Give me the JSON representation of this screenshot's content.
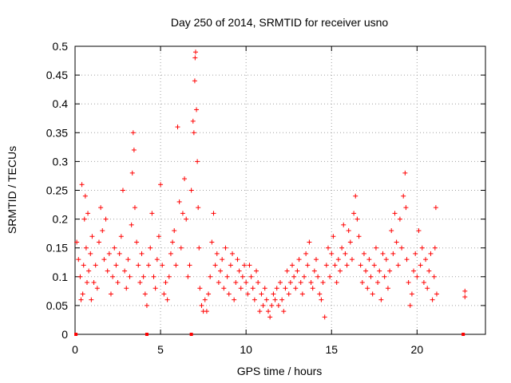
{
  "chart_data": {
    "type": "scatter",
    "title": "Day 250 of 2014, SRMTID for receiver usno",
    "xlabel": "GPS time / hours",
    "ylabel": "SRMTID / TECUs",
    "xlim": [
      0,
      24
    ],
    "ylim": [
      0,
      0.5
    ],
    "xticks": [
      0,
      5,
      10,
      15,
      20
    ],
    "yticks": [
      0,
      0.05,
      0.1,
      0.15,
      0.2,
      0.25,
      0.3,
      0.35,
      0.4,
      0.45,
      0.5
    ],
    "xtick_labels": [
      "0",
      "5",
      "10",
      "15",
      "20"
    ],
    "ytick_labels": [
      "0",
      "0.05",
      "0.1",
      "0.15",
      "0.2",
      "0.25",
      "0.3",
      "0.35",
      "0.4",
      "0.45",
      "0.5"
    ],
    "grid": true,
    "marker": "+",
    "color": "#ff0000",
    "zero_points": [
      [
        0.05,
        0.0
      ],
      [
        4.2,
        0.0
      ],
      [
        6.8,
        0.0
      ],
      [
        22.7,
        0.0
      ]
    ],
    "series": [
      {
        "name": "SRMTID",
        "points": [
          [
            0.1,
            0.16
          ],
          [
            0.2,
            0.13
          ],
          [
            0.3,
            0.1
          ],
          [
            0.35,
            0.06
          ],
          [
            0.4,
            0.26
          ],
          [
            0.45,
            0.07
          ],
          [
            0.5,
            0.12
          ],
          [
            0.55,
            0.2
          ],
          [
            0.6,
            0.24
          ],
          [
            0.65,
            0.15
          ],
          [
            0.7,
            0.09
          ],
          [
            0.75,
            0.21
          ],
          [
            0.8,
            0.11
          ],
          [
            0.9,
            0.14
          ],
          [
            0.95,
            0.06
          ],
          [
            1.0,
            0.17
          ],
          [
            1.1,
            0.09
          ],
          [
            1.2,
            0.12
          ],
          [
            1.3,
            0.08
          ],
          [
            1.4,
            0.16
          ],
          [
            1.5,
            0.22
          ],
          [
            1.6,
            0.18
          ],
          [
            1.7,
            0.13
          ],
          [
            1.8,
            0.2
          ],
          [
            1.9,
            0.11
          ],
          [
            2.0,
            0.14
          ],
          [
            2.1,
            0.07
          ],
          [
            2.2,
            0.1
          ],
          [
            2.3,
            0.15
          ],
          [
            2.4,
            0.12
          ],
          [
            2.5,
            0.09
          ],
          [
            2.6,
            0.14
          ],
          [
            2.7,
            0.17
          ],
          [
            2.8,
            0.25
          ],
          [
            2.9,
            0.11
          ],
          [
            3.0,
            0.08
          ],
          [
            3.1,
            0.13
          ],
          [
            3.2,
            0.1
          ],
          [
            3.3,
            0.19
          ],
          [
            3.35,
            0.28
          ],
          [
            3.4,
            0.35
          ],
          [
            3.45,
            0.32
          ],
          [
            3.5,
            0.22
          ],
          [
            3.6,
            0.16
          ],
          [
            3.7,
            0.12
          ],
          [
            3.8,
            0.09
          ],
          [
            3.9,
            0.14
          ],
          [
            4.0,
            0.1
          ],
          [
            4.1,
            0.07
          ],
          [
            4.2,
            0.05
          ],
          [
            4.3,
            0.12
          ],
          [
            4.4,
            0.15
          ],
          [
            4.5,
            0.21
          ],
          [
            4.6,
            0.1
          ],
          [
            4.7,
            0.08
          ],
          [
            4.8,
            0.13
          ],
          [
            4.9,
            0.17
          ],
          [
            5.0,
            0.26
          ],
          [
            5.1,
            0.12
          ],
          [
            5.2,
            0.07
          ],
          [
            5.3,
            0.09
          ],
          [
            5.4,
            0.06
          ],
          [
            5.5,
            0.1
          ],
          [
            5.6,
            0.14
          ],
          [
            5.7,
            0.16
          ],
          [
            5.8,
            0.18
          ],
          [
            5.9,
            0.12
          ],
          [
            6.0,
            0.36
          ],
          [
            6.1,
            0.23
          ],
          [
            6.2,
            0.15
          ],
          [
            6.3,
            0.21
          ],
          [
            6.4,
            0.27
          ],
          [
            6.5,
            0.2
          ],
          [
            6.6,
            0.1
          ],
          [
            6.7,
            0.12
          ],
          [
            6.8,
            0.25
          ],
          [
            6.9,
            0.37
          ],
          [
            6.95,
            0.35
          ],
          [
            7.0,
            0.44
          ],
          [
            7.02,
            0.48
          ],
          [
            7.05,
            0.49
          ],
          [
            7.1,
            0.39
          ],
          [
            7.15,
            0.3
          ],
          [
            7.2,
            0.22
          ],
          [
            7.25,
            0.15
          ],
          [
            7.3,
            0.08
          ],
          [
            7.4,
            0.05
          ],
          [
            7.5,
            0.04
          ],
          [
            7.6,
            0.06
          ],
          [
            7.7,
            0.04
          ],
          [
            7.8,
            0.07
          ],
          [
            7.9,
            0.1
          ],
          [
            8.0,
            0.16
          ],
          [
            8.1,
            0.21
          ],
          [
            8.2,
            0.12
          ],
          [
            8.3,
            0.14
          ],
          [
            8.4,
            0.09
          ],
          [
            8.5,
            0.11
          ],
          [
            8.6,
            0.13
          ],
          [
            8.7,
            0.08
          ],
          [
            8.8,
            0.15
          ],
          [
            8.9,
            0.1
          ],
          [
            9.0,
            0.07
          ],
          [
            9.1,
            0.12
          ],
          [
            9.2,
            0.14
          ],
          [
            9.3,
            0.06
          ],
          [
            9.4,
            0.09
          ],
          [
            9.5,
            0.13
          ],
          [
            9.6,
            0.11
          ],
          [
            9.7,
            0.08
          ],
          [
            9.8,
            0.1
          ],
          [
            9.9,
            0.12
          ],
          [
            10.0,
            0.09
          ],
          [
            10.1,
            0.07
          ],
          [
            10.2,
            0.12
          ],
          [
            10.3,
            0.1
          ],
          [
            10.4,
            0.08
          ],
          [
            10.5,
            0.06
          ],
          [
            10.6,
            0.11
          ],
          [
            10.7,
            0.09
          ],
          [
            10.8,
            0.04
          ],
          [
            10.9,
            0.07
          ],
          [
            11.0,
            0.05
          ],
          [
            11.1,
            0.08
          ],
          [
            11.2,
            0.06
          ],
          [
            11.3,
            0.04
          ],
          [
            11.4,
            0.03
          ],
          [
            11.5,
            0.05
          ],
          [
            11.6,
            0.07
          ],
          [
            11.7,
            0.06
          ],
          [
            11.8,
            0.08
          ],
          [
            11.9,
            0.05
          ],
          [
            12.0,
            0.09
          ],
          [
            12.1,
            0.06
          ],
          [
            12.2,
            0.04
          ],
          [
            12.3,
            0.08
          ],
          [
            12.4,
            0.11
          ],
          [
            12.5,
            0.07
          ],
          [
            12.6,
            0.09
          ],
          [
            12.7,
            0.12
          ],
          [
            12.8,
            0.1
          ],
          [
            12.9,
            0.08
          ],
          [
            13.0,
            0.11
          ],
          [
            13.1,
            0.13
          ],
          [
            13.2,
            0.09
          ],
          [
            13.3,
            0.07
          ],
          [
            13.4,
            0.1
          ],
          [
            13.5,
            0.14
          ],
          [
            13.6,
            0.12
          ],
          [
            13.7,
            0.16
          ],
          [
            13.8,
            0.09
          ],
          [
            13.9,
            0.08
          ],
          [
            14.0,
            0.11
          ],
          [
            14.1,
            0.13
          ],
          [
            14.2,
            0.1
          ],
          [
            14.3,
            0.07
          ],
          [
            14.4,
            0.06
          ],
          [
            14.5,
            0.09
          ],
          [
            14.6,
            0.03
          ],
          [
            14.7,
            0.12
          ],
          [
            14.8,
            0.15
          ],
          [
            14.9,
            0.1
          ],
          [
            15.0,
            0.14
          ],
          [
            15.1,
            0.17
          ],
          [
            15.2,
            0.12
          ],
          [
            15.3,
            0.09
          ],
          [
            15.4,
            0.13
          ],
          [
            15.5,
            0.11
          ],
          [
            15.6,
            0.15
          ],
          [
            15.7,
            0.19
          ],
          [
            15.8,
            0.14
          ],
          [
            15.9,
            0.12
          ],
          [
            16.0,
            0.18
          ],
          [
            16.1,
            0.16
          ],
          [
            16.2,
            0.13
          ],
          [
            16.3,
            0.21
          ],
          [
            16.4,
            0.24
          ],
          [
            16.5,
            0.2
          ],
          [
            16.6,
            0.17
          ],
          [
            16.7,
            0.12
          ],
          [
            16.8,
            0.09
          ],
          [
            16.9,
            0.14
          ],
          [
            17.0,
            0.11
          ],
          [
            17.1,
            0.08
          ],
          [
            17.2,
            0.13
          ],
          [
            17.3,
            0.1
          ],
          [
            17.4,
            0.07
          ],
          [
            17.5,
            0.12
          ],
          [
            17.6,
            0.15
          ],
          [
            17.7,
            0.09
          ],
          [
            17.8,
            0.11
          ],
          [
            17.9,
            0.06
          ],
          [
            18.0,
            0.14
          ],
          [
            18.1,
            0.1
          ],
          [
            18.2,
            0.13
          ],
          [
            18.3,
            0.08
          ],
          [
            18.4,
            0.11
          ],
          [
            18.5,
            0.18
          ],
          [
            18.6,
            0.14
          ],
          [
            18.7,
            0.21
          ],
          [
            18.8,
            0.16
          ],
          [
            18.9,
            0.12
          ],
          [
            19.0,
            0.2
          ],
          [
            19.1,
            0.15
          ],
          [
            19.2,
            0.24
          ],
          [
            19.3,
            0.28
          ],
          [
            19.35,
            0.22
          ],
          [
            19.4,
            0.13
          ],
          [
            19.5,
            0.09
          ],
          [
            19.6,
            0.05
          ],
          [
            19.7,
            0.07
          ],
          [
            19.8,
            0.11
          ],
          [
            19.9,
            0.14
          ],
          [
            20.0,
            0.1
          ],
          [
            20.1,
            0.18
          ],
          [
            20.2,
            0.12
          ],
          [
            20.3,
            0.15
          ],
          [
            20.4,
            0.09
          ],
          [
            20.5,
            0.13
          ],
          [
            20.6,
            0.08
          ],
          [
            20.7,
            0.11
          ],
          [
            20.8,
            0.14
          ],
          [
            20.9,
            0.06
          ],
          [
            21.0,
            0.1
          ],
          [
            21.05,
            0.15
          ],
          [
            21.1,
            0.22
          ],
          [
            21.15,
            0.07
          ],
          [
            22.8,
            0.075
          ],
          [
            22.8,
            0.065
          ]
        ]
      }
    ]
  }
}
